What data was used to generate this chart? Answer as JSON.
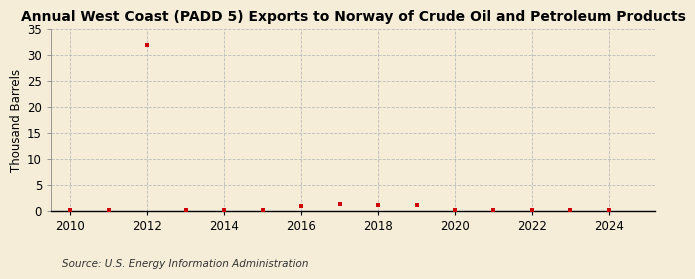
{
  "title": "Annual West Coast (PADD 5) Exports to Norway of Crude Oil and Petroleum Products",
  "ylabel": "Thousand Barrels",
  "source": "Source: U.S. Energy Information Administration",
  "background_color": "#f5edd8",
  "years": [
    2010,
    2011,
    2012,
    2013,
    2014,
    2015,
    2016,
    2017,
    2018,
    2019,
    2020,
    2021,
    2022,
    2023,
    2024
  ],
  "values": [
    0.05,
    0.05,
    32.0,
    0.05,
    0.05,
    0.05,
    1.0,
    1.2,
    1.1,
    1.1,
    0.05,
    0.05,
    0.05,
    0.05,
    0.05
  ],
  "marker_color": "#cc0000",
  "marker": "s",
  "marker_size": 3.5,
  "xlim": [
    2009.5,
    2025.2
  ],
  "ylim": [
    0,
    35
  ],
  "yticks": [
    0,
    5,
    10,
    15,
    20,
    25,
    30,
    35
  ],
  "xticks": [
    2010,
    2012,
    2014,
    2016,
    2018,
    2020,
    2022,
    2024
  ],
  "grid_color": "#bbbbbb",
  "grid_linestyle": "--",
  "title_fontsize": 10,
  "axis_fontsize": 8.5,
  "source_fontsize": 7.5
}
